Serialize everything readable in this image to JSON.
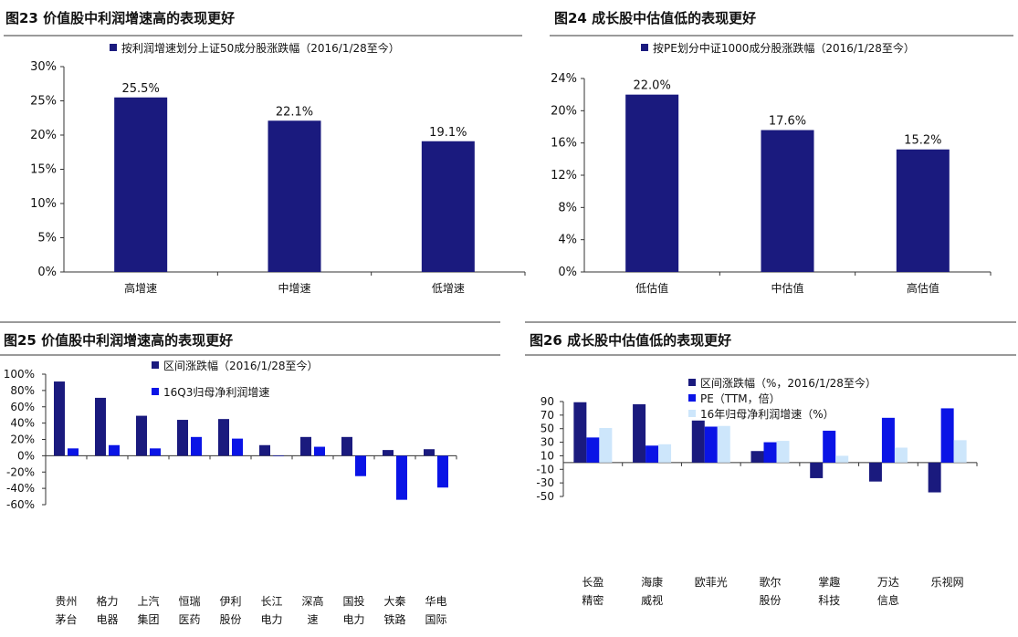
{
  "colors": {
    "navy": "#1a1a7e",
    "blue": "#0a14e6",
    "light": "#cde6fb"
  },
  "charts": [
    {
      "id": "fig23",
      "title": "图23  价值股中利润增速高的表现更好",
      "chart_data": {
        "type": "bar",
        "categories": [
          "高增速",
          "中增速",
          "低增速"
        ],
        "series": [
          {
            "name": "按利润增速划分上证50成分股涨跌幅（2016/1/28至今）",
            "values": [
              25.5,
              22.1,
              19.1
            ]
          }
        ],
        "data_labels": [
          "25.5%",
          "22.1%",
          "19.1%"
        ],
        "ylim": [
          0,
          30
        ],
        "yticks": [
          0,
          5,
          10,
          15,
          20,
          25,
          30
        ],
        "ytick_labels": [
          "0%",
          "5%",
          "10%",
          "15%",
          "20%",
          "25%",
          "30%"
        ],
        "legend_position": "top",
        "grid": false
      }
    },
    {
      "id": "fig24",
      "title": "图24  成长股中估值低的表现更好",
      "chart_data": {
        "type": "bar",
        "categories": [
          "低估值",
          "中估值",
          "高估值"
        ],
        "series": [
          {
            "name": "按PE划分中证1000成分股涨跌幅（2016/1/28至今）",
            "values": [
              22.0,
              17.6,
              15.2
            ]
          }
        ],
        "data_labels": [
          "22.0%",
          "17.6%",
          "15.2%"
        ],
        "ylim": [
          0,
          24
        ],
        "yticks": [
          0,
          4,
          8,
          12,
          16,
          20,
          24
        ],
        "ytick_labels": [
          "0%",
          "4%",
          "8%",
          "12%",
          "16%",
          "20%",
          "24%"
        ],
        "legend_position": "top",
        "grid": false
      }
    },
    {
      "id": "fig25",
      "title": "图25  价值股中利润增速高的表现更好",
      "chart_data": {
        "type": "bar",
        "categories": [
          "贵州\n茅台",
          "格力\n电器",
          "上汽\n集团",
          "恒瑞\n医药",
          "伊利\n股份",
          "长江\n电力",
          "深高\n速",
          "国投\n电力",
          "大秦\n铁路",
          "华电\n国际"
        ],
        "series": [
          {
            "name": "区间涨跌幅（2016/1/28至今）",
            "values": [
              91,
              71,
              49,
              44,
              45,
              13,
              23,
              23,
              7,
              8
            ]
          },
          {
            "name": "16Q3归母净利润增速",
            "values": [
              9,
              13,
              9,
              23,
              21,
              0,
              11,
              -25,
              -54,
              -39
            ]
          }
        ],
        "ylim": [
          -60,
          100
        ],
        "yticks": [
          -60,
          -40,
          -20,
          0,
          20,
          40,
          60,
          80,
          100
        ],
        "ytick_labels": [
          "-60%",
          "-40%",
          "-20%",
          "0%",
          "20%",
          "40%",
          "60%",
          "80%",
          "100%"
        ],
        "legend_position": "top",
        "grid": false
      }
    },
    {
      "id": "fig26",
      "title": "图26  成长股中估值低的表现更好",
      "chart_data": {
        "type": "bar",
        "categories": [
          "长盈\n精密",
          "海康\n威视",
          "欧菲光",
          "歌尔\n股份",
          "掌趣\n科技",
          "万达\n信息",
          "乐视网"
        ],
        "series": [
          {
            "name": "区间涨跌幅（%，2016/1/28至今）",
            "values": [
              89,
              86,
              62,
              17,
              -23,
              -28,
              -44
            ]
          },
          {
            "name": "PE（TTM，倍）",
            "values": [
              37,
              25,
              53,
              30,
              47,
              66,
              80
            ]
          },
          {
            "name": "16年归母净利润增速（%）",
            "values": [
              51,
              27,
              54,
              32,
              10,
              22,
              33
            ]
          }
        ],
        "ylim": [
          -50,
          90
        ],
        "yticks": [
          -50,
          -30,
          -10,
          10,
          30,
          50,
          70,
          90
        ],
        "ytick_labels": [
          "-50",
          "-30",
          "-10",
          "10",
          "30",
          "50",
          "70",
          "90"
        ],
        "legend_position": "top-left",
        "grid": false
      }
    }
  ]
}
